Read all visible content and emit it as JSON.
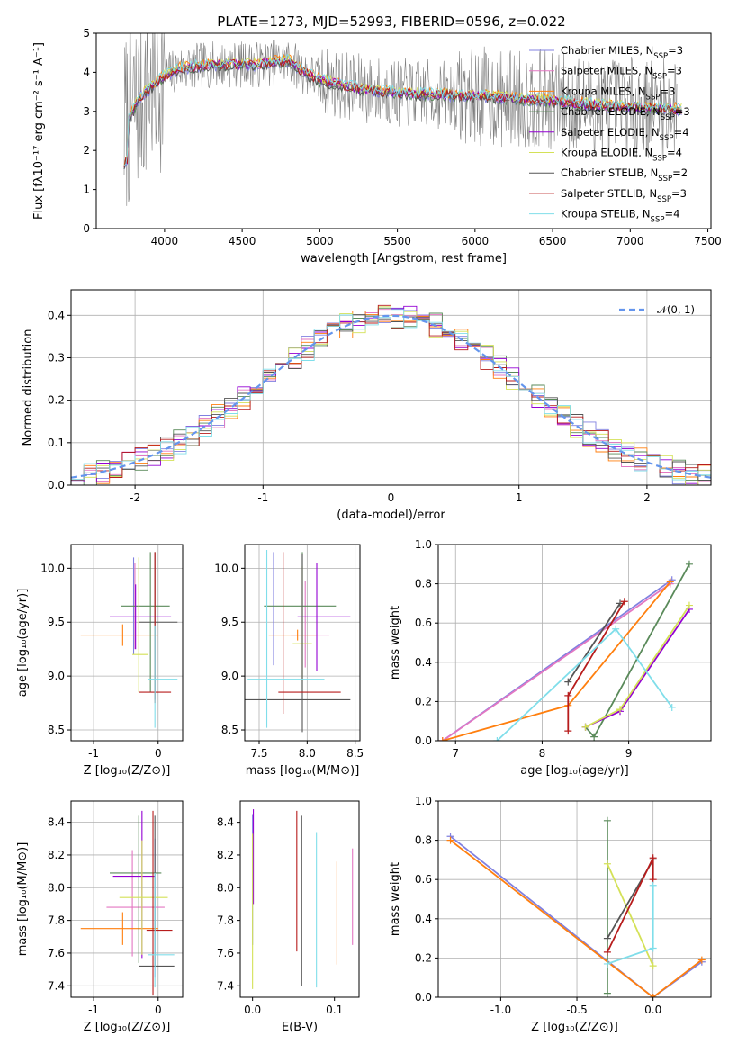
{
  "figure": {
    "title": "PLATE=1273, MJD=52993, FIBERID=0596, z=0.022"
  },
  "chart_data": [
    {
      "id": "spectrum",
      "type": "line",
      "title": "PLATE=1273, MJD=52993, FIBERID=0596, z=0.022",
      "xlabel": "wavelength [Angstrom, rest frame]",
      "ylabel": "Flux [fλ10⁻¹⁷ erg cm⁻² s⁻¹ A⁻¹]",
      "xlim": [
        3560,
        7520
      ],
      "ylim": [
        0,
        5
      ],
      "xticks": [
        4000,
        4500,
        5000,
        5500,
        6000,
        6500,
        7000,
        7500
      ],
      "yticks": [
        0,
        1,
        2,
        3,
        4,
        5
      ],
      "grid": false,
      "legend_position": "top-right",
      "data_shape": {
        "x": [
          3750,
          3850,
          4000,
          4100,
          4300,
          4600,
          4800,
          4900,
          5000,
          5300,
          5600,
          6000,
          6400,
          6800,
          7300
        ],
        "y": [
          2.7,
          3.4,
          3.9,
          4.1,
          4.2,
          4.2,
          4.3,
          4.0,
          3.8,
          3.55,
          3.45,
          3.4,
          3.3,
          3.15,
          3.05
        ]
      },
      "observed_noise_range": [
        0,
        5
      ]
    },
    {
      "id": "residuals",
      "type": "histogram",
      "xlabel": "(data-model)/error",
      "ylabel": "Normed distribution",
      "xlim": [
        -2.5,
        2.5
      ],
      "ylim": [
        0,
        0.46
      ],
      "xticks": [
        -2,
        -1,
        0,
        1,
        2
      ],
      "yticks": [
        0.0,
        0.1,
        0.2,
        0.3,
        0.4
      ],
      "grid": true,
      "legend": [
        "𝒩(0, 1)"
      ],
      "legend_position": "top-right",
      "reference_curve": {
        "type": "normal",
        "mean": 0,
        "sigma": 1,
        "style": "dashed",
        "color": "#6495ed"
      }
    },
    {
      "id": "z_vs_age",
      "type": "errorbar",
      "xlabel": "Z [log₁₀(Z/Z⊙)]",
      "ylabel": "age  [log₁₀(age/yr)]",
      "xlim": [
        -1.35,
        0.38
      ],
      "ylim": [
        8.4,
        10.22
      ],
      "xticks": [
        -1,
        0
      ],
      "yticks": [
        8.5,
        9.0,
        9.5,
        10.0
      ],
      "grid": true
    },
    {
      "id": "mass_vs_age",
      "type": "errorbar",
      "xlabel": "mass [log₁₀(M/M⊙)]",
      "xlim": [
        7.35,
        8.55
      ],
      "ylim": [
        8.4,
        10.22
      ],
      "xticks": [
        7.5,
        8.0,
        8.5
      ],
      "yticks": [
        8.5,
        9.0,
        9.5,
        10.0
      ],
      "grid": true
    },
    {
      "id": "age_weights",
      "type": "line",
      "xlabel": "age  [log₁₀(age/yr)]",
      "ylabel": "mass weight",
      "xlim": [
        6.8,
        9.95
      ],
      "ylim": [
        0,
        1
      ],
      "xticks": [
        7,
        8,
        9
      ],
      "yticks": [
        0.0,
        0.2,
        0.4,
        0.6,
        0.8,
        1.0
      ],
      "grid": true,
      "series": [
        {
          "color": "#8080e0",
          "x": [
            6.85,
            9.5
          ],
          "y": [
            0.0,
            0.82
          ]
        },
        {
          "color": "#e377c2",
          "x": [
            6.85,
            9.48
          ],
          "y": [
            0.0,
            0.8
          ]
        },
        {
          "color": "#ff7f0e",
          "x": [
            6.85,
            8.3,
            9.48
          ],
          "y": [
            0.0,
            0.18,
            0.81
          ]
        },
        {
          "color": "#5a8a5a",
          "x": [
            8.5,
            8.6,
            9.7
          ],
          "y": [
            0.07,
            0.02,
            0.9
          ]
        },
        {
          "color": "#9400d3",
          "x": [
            8.5,
            8.9,
            9.7
          ],
          "y": [
            0.07,
            0.15,
            0.67
          ]
        },
        {
          "color": "#d4e157",
          "x": [
            8.5,
            8.9,
            9.7
          ],
          "y": [
            0.07,
            0.16,
            0.69
          ]
        },
        {
          "color": "#555555",
          "x": [
            8.3,
            8.9
          ],
          "y": [
            0.3,
            0.7
          ]
        },
        {
          "color": "#b71c1c",
          "x": [
            8.3,
            8.3,
            8.95
          ],
          "y": [
            0.05,
            0.23,
            0.71
          ]
        },
        {
          "color": "#80deea",
          "x": [
            7.48,
            8.85,
            9.5
          ],
          "y": [
            0.0,
            0.57,
            0.17
          ]
        }
      ]
    },
    {
      "id": "z_vs_mass",
      "type": "errorbar",
      "xlabel": "Z [log₁₀(Z/Z⊙)]",
      "ylabel": "mass [log₁₀(M/M⊙)]",
      "xlim": [
        -1.35,
        0.38
      ],
      "ylim": [
        7.33,
        8.53
      ],
      "xticks": [
        -1,
        0
      ],
      "yticks": [
        7.4,
        7.6,
        7.8,
        8.0,
        8.2,
        8.4
      ],
      "grid": true
    },
    {
      "id": "ebv_vs_mass",
      "type": "errorbar",
      "xlabel": "E(B-V)",
      "xlim": [
        -0.015,
        0.13
      ],
      "ylim": [
        7.33,
        8.53
      ],
      "xticks": [
        0.0,
        0.1
      ],
      "yticks": [
        7.4,
        7.6,
        7.8,
        8.0,
        8.2,
        8.4
      ],
      "grid": false
    },
    {
      "id": "z_weights",
      "type": "line",
      "xlabel": "Z [log₁₀(Z/Z⊙)]",
      "ylabel": "mass weight",
      "xlim": [
        -1.41,
        0.38
      ],
      "ylim": [
        0,
        1
      ],
      "xticks": [
        -1.0,
        -0.5,
        0.0
      ],
      "yticks": [
        0.0,
        0.2,
        0.4,
        0.6,
        0.8,
        1.0
      ],
      "grid": true,
      "series": [
        {
          "color": "#8080e0",
          "x": [
            -1.33,
            0.0,
            0.32
          ],
          "y": [
            0.82,
            0.0,
            0.18
          ]
        },
        {
          "color": "#ff7f0e",
          "x": [
            -1.33,
            0.0,
            0.32
          ],
          "y": [
            0.8,
            0.0,
            0.19
          ]
        },
        {
          "color": "#5a8a5a",
          "x": [
            -0.3,
            -0.3
          ],
          "y": [
            0.02,
            0.9
          ]
        },
        {
          "color": "#d4e157",
          "x": [
            -0.3,
            0.0
          ],
          "y": [
            0.68,
            0.16
          ]
        },
        {
          "color": "#555555",
          "x": [
            -0.3,
            0.0
          ],
          "y": [
            0.3,
            0.7
          ]
        },
        {
          "color": "#b71c1c",
          "x": [
            -0.3,
            0.0,
            0.0
          ],
          "y": [
            0.23,
            0.71,
            0.6
          ]
        },
        {
          "color": "#80deea",
          "x": [
            -0.3,
            0.0,
            0.0
          ],
          "y": [
            0.17,
            0.25,
            0.57
          ]
        }
      ]
    }
  ],
  "legend": {
    "items": [
      {
        "label": "Chabrier MILES, N",
        "sub": "SSP",
        "suffix": "=3",
        "color": "#8080e0"
      },
      {
        "label": "Salpeter MILES, N",
        "sub": "SSP",
        "suffix": "=3",
        "color": "#e377c2"
      },
      {
        "label": "Kroupa MILES, N",
        "sub": "SSP",
        "suffix": "=3",
        "color": "#ff7f0e"
      },
      {
        "label": "Chabrier ELODIE, N",
        "sub": "SSP",
        "suffix": "=3",
        "color": "#5a8a5a"
      },
      {
        "label": "Salpeter ELODIE, N",
        "sub": "SSP",
        "suffix": "=4",
        "color": "#9400d3"
      },
      {
        "label": "Kroupa ELODIE, N",
        "sub": "SSP",
        "suffix": "=4",
        "color": "#d4e157"
      },
      {
        "label": "Chabrier STELIB, N",
        "sub": "SSP",
        "suffix": "=2",
        "color": "#555555"
      },
      {
        "label": "Salpeter STELIB, N",
        "sub": "SSP",
        "suffix": "=3",
        "color": "#b71c1c"
      },
      {
        "label": "Kroupa STELIB, N",
        "sub": "SSP",
        "suffix": "=4",
        "color": "#80deea"
      }
    ]
  },
  "colors": {
    "data": "#808080",
    "gauss": "#6495ed"
  }
}
